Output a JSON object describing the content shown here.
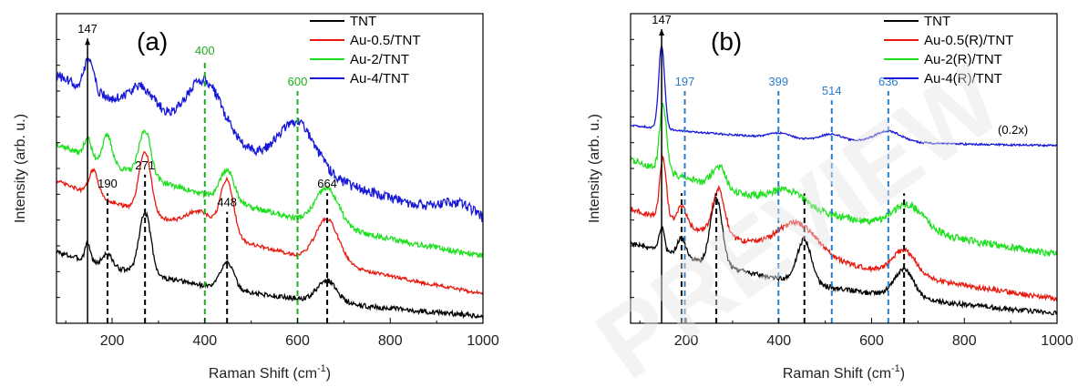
{
  "watermark": {
    "text": "PREVIEW",
    "color": "#e6e6e6"
  },
  "chart_data": [
    {
      "type": "line",
      "panel_label": "(a)",
      "xlabel": "Raman Shift (cm",
      "xlabel_sup": "-1",
      "xlabel_end": ")",
      "ylabel": "Intensity (arb. u.)",
      "xlim": [
        80,
        1000
      ],
      "xticks": [
        200,
        400,
        600,
        800,
        1000
      ],
      "ylim": [
        0,
        1
      ],
      "yticks_labeled": false,
      "grid": false,
      "legend_position": "top-right",
      "series": [
        {
          "name": "TNT",
          "color": "#000000",
          "base": 0.05,
          "slope": 0.18,
          "decay": 0.0022,
          "end": 0.0,
          "noise": 0.008,
          "peaks": [
            [
              147,
              0.06,
              8
            ],
            [
              190,
              0.04,
              14
            ],
            [
              271,
              0.2,
              18
            ],
            [
              448,
              0.09,
              20
            ],
            [
              664,
              0.07,
              30
            ]
          ]
        },
        {
          "name": "Au-0.5/TNT",
          "color": "#e8190f",
          "base": 0.16,
          "slope": 0.3,
          "decay": 0.0015,
          "end": 0.02,
          "noise": 0.006,
          "peaks": [
            [
              160,
              0.08,
              14
            ],
            [
              271,
              0.2,
              18
            ],
            [
              390,
              0.06,
              40
            ],
            [
              448,
              0.18,
              20
            ],
            [
              664,
              0.14,
              35
            ]
          ]
        },
        {
          "name": "Au-2/TNT",
          "color": "#1fe01f",
          "base": 0.33,
          "slope": 0.25,
          "decay": 0.0018,
          "end": 0.17,
          "noise": 0.009,
          "peaks": [
            [
              147,
              0.06,
              10
            ],
            [
              190,
              0.09,
              14
            ],
            [
              271,
              0.15,
              18
            ],
            [
              448,
              0.1,
              22
            ],
            [
              664,
              0.12,
              35
            ]
          ]
        },
        {
          "name": "Au-4/TNT",
          "color": "#1818d8",
          "base": 0.58,
          "slope": 0.22,
          "decay": 0.0015,
          "end": 0.26,
          "noise": 0.016,
          "peaks": [
            [
              150,
              0.1,
              14
            ],
            [
              265,
              0.08,
              40
            ],
            [
              400,
              0.18,
              55
            ],
            [
              600,
              0.15,
              55
            ],
            [
              950,
              0.05,
              60
            ]
          ]
        }
      ],
      "markers": [
        {
          "x": 147,
          "label": "147",
          "color": "#000000",
          "style": "solid-arrow",
          "top": 0.92
        },
        {
          "x": 190,
          "label": "190",
          "color": "#000000",
          "style": "dashed",
          "top": 0.42
        },
        {
          "x": 271,
          "label": "271",
          "color": "#000000",
          "style": "dashed",
          "top": 0.48
        },
        {
          "x": 448,
          "label": "448",
          "color": "#000000",
          "style": "dashed",
          "top": 0.36
        },
        {
          "x": 664,
          "label": "664",
          "color": "#000000",
          "style": "dashed",
          "top": 0.42
        },
        {
          "x": 400,
          "label": "400",
          "color": "#1fae1f",
          "style": "dashed",
          "top": 0.85
        },
        {
          "x": 600,
          "label": "600",
          "color": "#1fae1f",
          "style": "dashed",
          "top": 0.75
        }
      ]
    },
    {
      "type": "line",
      "panel_label": "(b)",
      "xlabel": "Raman Shift (cm",
      "xlabel_sup": "-1",
      "xlabel_end": ")",
      "ylabel": "Intensity (arb. u.)",
      "xlim": [
        80,
        1000
      ],
      "xticks": [
        200,
        400,
        600,
        800,
        1000
      ],
      "ylim": [
        0,
        1
      ],
      "yticks_labeled": false,
      "grid": false,
      "legend_position": "top-right",
      "annotation": "(0.2x)",
      "series": [
        {
          "name": "TNT",
          "color": "#000000",
          "base": 0.06,
          "slope": 0.2,
          "decay": 0.002,
          "end": 0.0,
          "noise": 0.008,
          "peaks": [
            [
              147,
              0.08,
              8
            ],
            [
              190,
              0.06,
              14
            ],
            [
              265,
              0.22,
              18
            ],
            [
              455,
              0.14,
              22
            ],
            [
              670,
              0.09,
              30
            ]
          ]
        },
        {
          "name": "Au-0.5(R)/TNT",
          "color": "#e8190f",
          "base": 0.17,
          "slope": 0.2,
          "decay": 0.0018,
          "end": 0.04,
          "noise": 0.008,
          "peaks": [
            [
              150,
              0.2,
              10
            ],
            [
              190,
              0.06,
              14
            ],
            [
              270,
              0.15,
              18
            ],
            [
              440,
              0.1,
              60
            ],
            [
              670,
              0.08,
              35
            ]
          ]
        },
        {
          "name": "Au-2(R)/TNT",
          "color": "#1fe01f",
          "base": 0.36,
          "slope": 0.17,
          "decay": 0.0022,
          "end": 0.2,
          "noise": 0.012,
          "peaks": [
            [
              150,
              0.22,
              10
            ],
            [
              270,
              0.07,
              20
            ],
            [
              420,
              0.05,
              50
            ],
            [
              680,
              0.08,
              50
            ]
          ]
        },
        {
          "name": "Au-4(R)/TNT",
          "color": "#1818d8",
          "base": 0.58,
          "slope": 0.06,
          "decay": 0.003,
          "end": 0.57,
          "noise": 0.003,
          "peaks": [
            [
              147,
              0.27,
              9
            ],
            [
              400,
              0.015,
              30
            ],
            [
              514,
              0.02,
              30
            ],
            [
              636,
              0.035,
              40
            ]
          ]
        }
      ],
      "markers": [
        {
          "x": 147,
          "label": "147",
          "color": "#000000",
          "style": "solid-arrow",
          "top": 0.95
        },
        {
          "x": 190,
          "label": "",
          "color": "#000000",
          "style": "dashed",
          "top": 0.42
        },
        {
          "x": 265,
          "label": "",
          "color": "#000000",
          "style": "dashed",
          "top": 0.42
        },
        {
          "x": 455,
          "label": "",
          "color": "#000000",
          "style": "dashed",
          "top": 0.42
        },
        {
          "x": 670,
          "label": "",
          "color": "#000000",
          "style": "dashed",
          "top": 0.42
        },
        {
          "x": 197,
          "label": "197",
          "color": "#2a7ec9",
          "style": "dashed",
          "top": 0.75
        },
        {
          "x": 399,
          "label": "399",
          "color": "#2a7ec9",
          "style": "dashed",
          "top": 0.75
        },
        {
          "x": 514,
          "label": "514",
          "color": "#2a7ec9",
          "style": "dashed",
          "top": 0.72
        },
        {
          "x": 636,
          "label": "636",
          "color": "#2a7ec9",
          "style": "dashed",
          "top": 0.75
        }
      ]
    }
  ]
}
